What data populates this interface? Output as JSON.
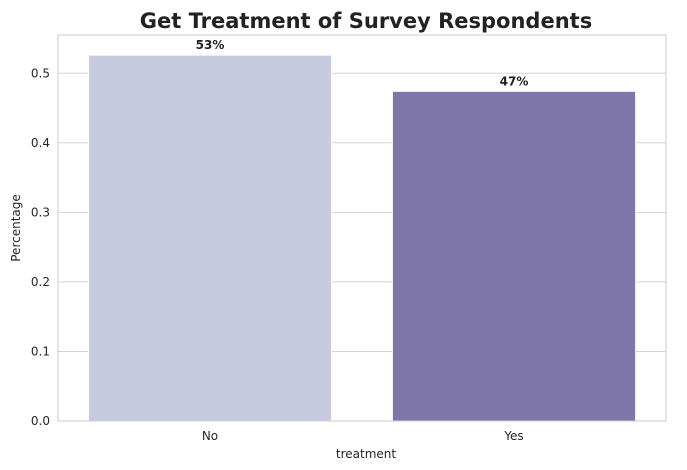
{
  "chart_data": {
    "type": "bar",
    "title": "Get Treatment of Survey Respondents",
    "xlabel": "treatment",
    "ylabel": "Percentage",
    "categories": [
      "No",
      "Yes"
    ],
    "values": [
      0.526,
      0.474
    ],
    "data_labels": [
      "53%",
      "47%"
    ],
    "colors": [
      "#c8cbe0",
      "#7f77aa"
    ],
    "ylim": [
      0,
      0.555
    ],
    "yticks": [
      0.0,
      0.1,
      0.2,
      0.3,
      0.4,
      0.5
    ],
    "ytick_labels": [
      "0.0",
      "0.1",
      "0.2",
      "0.3",
      "0.4",
      "0.5"
    ],
    "grid": true,
    "legend": "none"
  }
}
